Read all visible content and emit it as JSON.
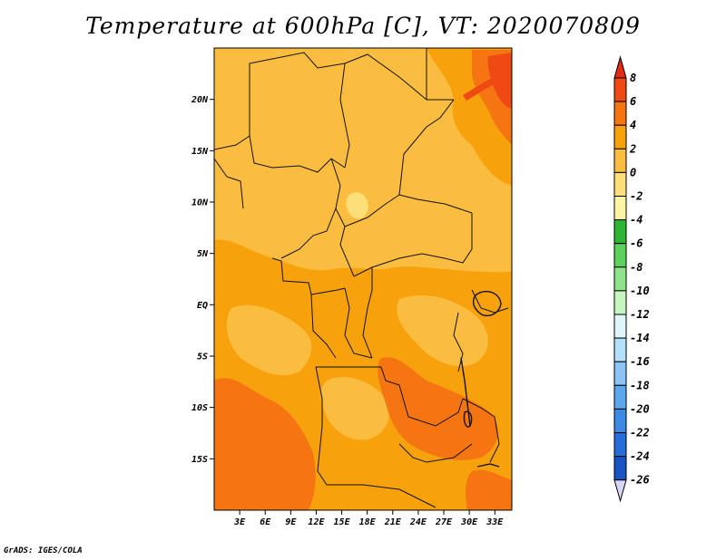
{
  "title": "Temperature at 600hPa [C], VT: 2020070809",
  "credit": "GrADS: IGES/COLA",
  "map": {
    "lon_range": [
      0,
      35
    ],
    "lat_range": [
      -20,
      25
    ],
    "lat_ticks": [
      {
        "value": 20,
        "label": "20N"
      },
      {
        "value": 15,
        "label": "15N"
      },
      {
        "value": 10,
        "label": "10N"
      },
      {
        "value": 5,
        "label": "5N"
      },
      {
        "value": 0,
        "label": "EQ"
      },
      {
        "value": -5,
        "label": "5S"
      },
      {
        "value": -10,
        "label": "10S"
      },
      {
        "value": -15,
        "label": "15S"
      }
    ],
    "lon_ticks": [
      {
        "value": 3,
        "label": "3E"
      },
      {
        "value": 6,
        "label": "6E"
      },
      {
        "value": 9,
        "label": "9E"
      },
      {
        "value": 12,
        "label": "12E"
      },
      {
        "value": 15,
        "label": "15E"
      },
      {
        "value": 18,
        "label": "18E"
      },
      {
        "value": 21,
        "label": "21E"
      },
      {
        "value": 24,
        "label": "24E"
      },
      {
        "value": 27,
        "label": "27E"
      },
      {
        "value": 30,
        "label": "30E"
      },
      {
        "value": 33,
        "label": "33E"
      }
    ],
    "fill_colors": {
      "band_0_2": "#fabd3f",
      "band_2_4": "#f7a20d",
      "band_4_6": "#f47511",
      "band_6_8": "#ef4a14",
      "band_m2_0": "#fbe07a"
    }
  },
  "colorbar": {
    "levels": [
      8,
      6,
      4,
      2,
      0,
      -2,
      -4,
      -6,
      -8,
      -10,
      -12,
      -14,
      -16,
      -18,
      -20,
      -22,
      -24,
      -26
    ],
    "labels": [
      "8",
      "6",
      "4",
      "2",
      "0",
      "-2",
      "-4",
      "-6",
      "-8",
      "-10",
      "-12",
      "-14",
      "-16",
      "-18",
      "-20",
      "-22",
      "-24",
      "-26"
    ],
    "top_color": "#e32a14",
    "bottom_color": "#d6d6f6",
    "colors": [
      "#ef4a14",
      "#f47511",
      "#f7a20d",
      "#fabd3f",
      "#fbe07a",
      "#fcf3a5",
      "#2db632",
      "#5cd15c",
      "#8ee489",
      "#c7f5bf",
      "#e0f5f9",
      "#b3e1fb",
      "#8ac5f6",
      "#5ca8ee",
      "#3d8ae5",
      "#256ed9",
      "#1853c3",
      "#0e39a4",
      "#060f6a"
    ]
  }
}
